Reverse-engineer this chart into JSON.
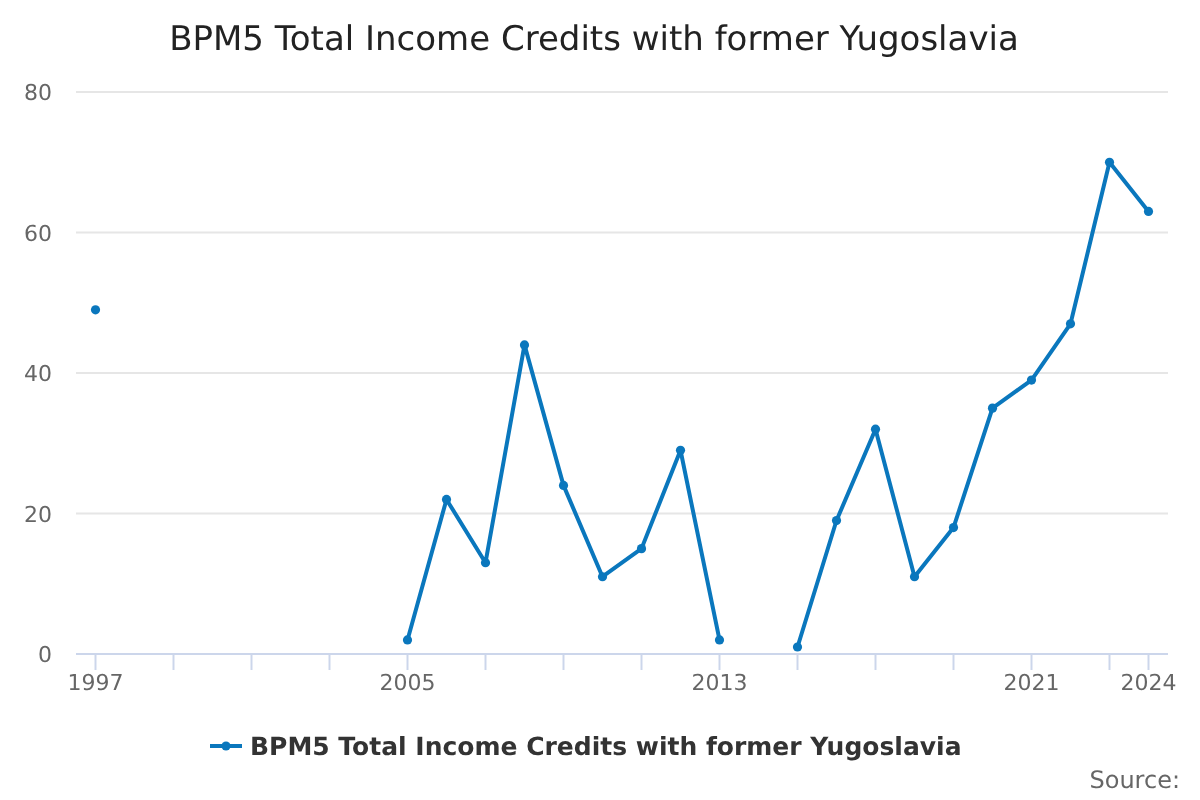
{
  "chart_data": {
    "type": "line",
    "title": "BPM5 Total Income Credits with former Yugoslavia",
    "x": [
      1997,
      1998,
      1999,
      2000,
      2001,
      2002,
      2003,
      2004,
      2005,
      2006,
      2007,
      2008,
      2009,
      2010,
      2011,
      2012,
      2013,
      2014,
      2015,
      2016,
      2017,
      2018,
      2019,
      2020,
      2021,
      2022,
      2023,
      2024
    ],
    "series": [
      {
        "name": "BPM5 Total Income Credits with former Yugoslavia",
        "color": "#0a77bd",
        "values": [
          49,
          null,
          null,
          null,
          null,
          null,
          null,
          null,
          2,
          22,
          13,
          44,
          24,
          11,
          15,
          29,
          2,
          null,
          1,
          19,
          32,
          11,
          18,
          35,
          39,
          47,
          70,
          63
        ]
      }
    ],
    "xlim": [
      1996.5,
      2024.5
    ],
    "xticks": [
      1997,
      {
        "value": 1999,
        "label": null
      },
      {
        "value": 2001,
        "label": null
      },
      {
        "value": 2003,
        "label": null
      },
      2005,
      {
        "value": 2007,
        "label": null
      },
      {
        "value": 2009,
        "label": null
      },
      {
        "value": 2011,
        "label": null
      },
      2013,
      {
        "value": 2015,
        "label": null
      },
      {
        "value": 2017,
        "label": null
      },
      {
        "value": 2019,
        "label": null
      },
      2021,
      {
        "value": 2023,
        "label": null
      },
      2024
    ],
    "ylim": [
      0,
      80
    ],
    "yticks": [
      0,
      20,
      40,
      60,
      80
    ],
    "grid": "y",
    "legend": "bottom",
    "marker": "circle",
    "line_style": "solid",
    "annotations": [
      "Source:"
    ]
  }
}
